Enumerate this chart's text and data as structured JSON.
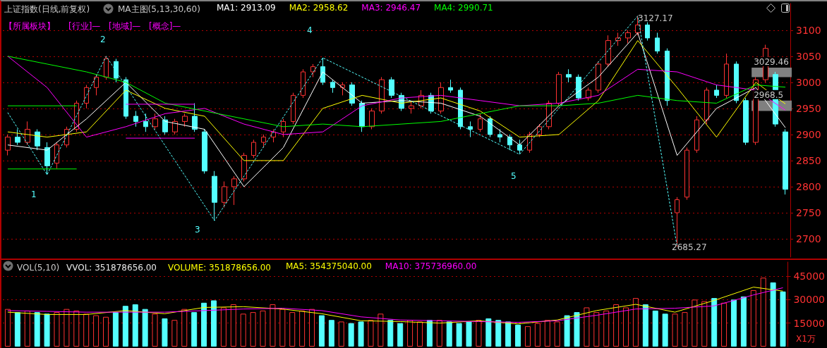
{
  "chart_data": [
    {
      "type": "candlestick",
      "tick_labels": "y",
      "grid": "y",
      "legend": "top",
      "annotations": [
        "上证指数(日线,前复权)",
        "MA主图(5,13,30,60)",
        "【所属板块】",
        "[行业]—",
        "[地域]—",
        "[概念]—",
        "1",
        "2",
        "3",
        "4",
        "5",
        "3127.17",
        "2685.27"
      ],
      "categories": [
        null,
        null,
        null,
        null,
        null,
        null,
        null,
        null,
        null,
        null,
        null,
        null,
        null,
        null,
        null,
        null,
        null,
        null,
        null,
        null,
        null,
        null,
        null,
        null,
        null,
        null,
        null,
        null,
        null,
        null,
        null,
        null,
        null,
        null,
        null,
        null,
        null,
        null,
        null,
        null,
        null,
        null,
        null,
        null,
        null,
        null,
        null,
        null,
        null,
        null,
        null,
        null,
        null,
        null,
        null,
        null,
        null,
        null,
        null,
        null,
        null,
        null,
        null,
        null,
        null,
        null,
        null,
        null,
        null,
        null,
        null,
        null,
        null,
        null,
        null,
        null,
        null,
        null,
        null,
        null
      ],
      "ohlc": [
        [
          2870,
          2900,
          2860,
          2895
        ],
        [
          2895,
          2910,
          2880,
          2885
        ],
        [
          2885,
          2925,
          2880,
          2910
        ],
        [
          2905,
          2910,
          2870,
          2878
        ],
        [
          2875,
          2885,
          2823,
          2840
        ],
        [
          2845,
          2885,
          2835,
          2880
        ],
        [
          2880,
          2915,
          2875,
          2910
        ],
        [
          2910,
          2965,
          2905,
          2960
        ],
        [
          2960,
          2995,
          2950,
          2990
        ],
        [
          2990,
          3015,
          2975,
          3010
        ],
        [
          3010,
          3050,
          3005,
          3045
        ],
        [
          3040,
          3045,
          3000,
          3008
        ],
        [
          3005,
          3010,
          2930,
          2935
        ],
        [
          2935,
          2945,
          2915,
          2925
        ],
        [
          2925,
          2940,
          2905,
          2915
        ],
        [
          2915,
          2940,
          2910,
          2930
        ],
        [
          2928,
          2935,
          2900,
          2905
        ],
        [
          2905,
          2930,
          2900,
          2925
        ],
        [
          2925,
          2940,
          2915,
          2935
        ],
        [
          2935,
          2960,
          2905,
          2910
        ],
        [
          2905,
          2910,
          2825,
          2830
        ],
        [
          2820,
          2830,
          2735,
          2770
        ],
        [
          2770,
          2810,
          2760,
          2800
        ],
        [
          2800,
          2820,
          2765,
          2815
        ],
        [
          2815,
          2865,
          2810,
          2860
        ],
        [
          2860,
          2890,
          2855,
          2885
        ],
        [
          2885,
          2900,
          2875,
          2895
        ],
        [
          2895,
          2910,
          2885,
          2905
        ],
        [
          2905,
          2930,
          2895,
          2925
        ],
        [
          2925,
          2980,
          2920,
          2975
        ],
        [
          2975,
          3025,
          2970,
          3020
        ],
        [
          3020,
          3035,
          3010,
          3030
        ],
        [
          3030,
          3047,
          2995,
          3000
        ],
        [
          3000,
          3005,
          2980,
          2990
        ],
        [
          2990,
          3000,
          2975,
          2995
        ],
        [
          2995,
          3000,
          2955,
          2960
        ],
        [
          2960,
          2965,
          2905,
          2915
        ],
        [
          2915,
          2950,
          2910,
          2945
        ],
        [
          2945,
          3010,
          2940,
          3005
        ],
        [
          3005,
          3010,
          2970,
          2975
        ],
        [
          2975,
          2980,
          2945,
          2950
        ],
        [
          2950,
          2965,
          2940,
          2955
        ],
        [
          2955,
          2985,
          2950,
          2975
        ],
        [
          2975,
          2980,
          2940,
          2945
        ],
        [
          2945,
          3000,
          2940,
          2990
        ],
        [
          2990,
          3005,
          2980,
          2985
        ],
        [
          2985,
          2990,
          2910,
          2915
        ],
        [
          2915,
          2925,
          2895,
          2910
        ],
        [
          2910,
          2940,
          2905,
          2930
        ],
        [
          2930,
          2935,
          2895,
          2900
        ],
        [
          2900,
          2910,
          2885,
          2895
        ],
        [
          2895,
          2900,
          2870,
          2880
        ],
        [
          2880,
          2890,
          2862,
          2870
        ],
        [
          2870,
          2905,
          2865,
          2900
        ],
        [
          2900,
          2920,
          2895,
          2915
        ],
        [
          2915,
          2965,
          2910,
          2960
        ],
        [
          2960,
          3020,
          2955,
          3015
        ],
        [
          3015,
          3025,
          3000,
          3010
        ],
        [
          3010,
          3015,
          2965,
          2970
        ],
        [
          2970,
          2990,
          2965,
          2985
        ],
        [
          2985,
          3040,
          2980,
          3035
        ],
        [
          3035,
          3090,
          3030,
          3080
        ],
        [
          3080,
          3095,
          3070,
          3085
        ],
        [
          3085,
          3100,
          3075,
          3095
        ],
        [
          3095,
          3127.17,
          3090,
          3110
        ],
        [
          3110,
          3115,
          3080,
          3085
        ],
        [
          3085,
          3095,
          3055,
          3060
        ],
        [
          3060,
          3065,
          2955,
          2965
        ],
        [
          2750,
          2780,
          2685.27,
          2775
        ],
        [
          2780,
          2875,
          2775,
          2870
        ],
        [
          2870,
          2935,
          2865,
          2928
        ],
        [
          2928,
          2990,
          2920,
          2985
        ],
        [
          2985,
          2995,
          2970,
          2975
        ],
        [
          2975,
          3055,
          2970,
          3035
        ],
        [
          3035,
          3040,
          2960,
          2965
        ],
        [
          2965,
          2970,
          2880,
          2885
        ],
        [
          2885,
          3010,
          2880,
          3005
        ],
        [
          3005,
          3072,
          3000,
          3065
        ],
        [
          3015,
          3020,
          2915,
          2920
        ],
        [
          2905,
          2910,
          2785,
          2795
        ]
      ],
      "colors": [
        "#ff3232",
        "#54ffff",
        "#ff3232",
        "#54ffff",
        "#54ffff",
        "#ff3232",
        "#ff3232",
        "#ff3232",
        "#ff3232",
        "#ff3232",
        "#ff3232",
        "#54ffff",
        "#54ffff",
        "#54ffff",
        "#54ffff",
        "#ff3232",
        "#54ffff",
        "#ff3232",
        "#ff3232",
        "#54ffff",
        "#54ffff",
        "#54ffff",
        "#ff3232",
        "#ff3232",
        "#ff3232",
        "#ff3232",
        "#ff3232",
        "#ff3232",
        "#ff3232",
        "#ff3232",
        "#ff3232",
        "#ff3232",
        "#54ffff",
        "#54ffff",
        "#ff3232",
        "#54ffff",
        "#54ffff",
        "#ff3232",
        "#ff3232",
        "#54ffff",
        "#54ffff",
        "#ff3232",
        "#ff3232",
        "#54ffff",
        "#ff3232",
        "#54ffff",
        "#54ffff",
        "#54ffff",
        "#ff3232",
        "#54ffff",
        "#54ffff",
        "#54ffff",
        "#54ffff",
        "#ff3232",
        "#ff3232",
        "#ff3232",
        "#ff3232",
        "#54ffff",
        "#54ffff",
        "#ff3232",
        "#ff3232",
        "#ff3232",
        "#ff3232",
        "#ff3232",
        "#ff3232",
        "#54ffff",
        "#54ffff",
        "#54ffff",
        "#ff3232",
        "#ff3232",
        "#ff3232",
        "#ff3232",
        "#54ffff",
        "#ff3232",
        "#54ffff",
        "#54ffff",
        "#ff3232",
        "#ff3232",
        "#54ffff",
        "#54ffff"
      ],
      "ylim": [
        2665,
        3151
      ],
      "yticks": [
        2700,
        2750,
        2800,
        2850,
        2900,
        2950,
        3000,
        3050,
        3100
      ],
      "bands": [
        {
          "axis": "y",
          "from": 3010,
          "to": 3028,
          "label": "3029.46",
          "color": "#808080"
        },
        {
          "axis": "y",
          "from": 2945,
          "to": 2965,
          "label": "2968.5",
          "color": "#808080"
        }
      ],
      "series": [
        {
          "type": "line",
          "name": "MA1: 2913.09",
          "color": "#ffffff",
          "values": [
            2880,
            null,
            null,
            null,
            2870,
            null,
            null,
            null,
            2930,
            null,
            null,
            null,
            3000,
            null,
            null,
            null,
            2925,
            null,
            null,
            null,
            2910,
            null,
            null,
            null,
            2800,
            null,
            null,
            null,
            2875,
            null,
            null,
            null,
            3020,
            null,
            null,
            null,
            2960,
            null,
            null,
            null,
            2965,
            null,
            null,
            null,
            2960,
            null,
            null,
            null,
            2935,
            null,
            null,
            null,
            2880,
            null,
            null,
            null,
            2955,
            null,
            null,
            null,
            3010,
            null,
            null,
            null,
            3095,
            null,
            null,
            null,
            2860,
            null,
            null,
            null,
            2950,
            null,
            null,
            null,
            2990,
            null,
            null,
            2913.09
          ]
        },
        {
          "type": "line",
          "name": "MA2: 2958.62",
          "color": "#ffff00",
          "values": [
            2905,
            null,
            null,
            null,
            2895,
            null,
            null,
            null,
            2905,
            null,
            null,
            null,
            2985,
            null,
            null,
            null,
            2950,
            null,
            null,
            null,
            2935,
            null,
            null,
            null,
            2850,
            null,
            null,
            null,
            2850,
            null,
            null,
            null,
            2950,
            null,
            null,
            null,
            2975,
            null,
            null,
            null,
            2960,
            null,
            null,
            null,
            2970,
            null,
            null,
            null,
            2945,
            null,
            null,
            null,
            2895,
            null,
            null,
            null,
            2900,
            null,
            null,
            null,
            2965,
            null,
            null,
            null,
            3080,
            null,
            null,
            null,
            2990,
            null,
            null,
            null,
            2895,
            null,
            null,
            null,
            3000,
            null,
            null,
            2958.62
          ]
        },
        {
          "type": "line",
          "name": "MA3: 2946.47",
          "color": "#ff00ff",
          "values": [
            3050,
            null,
            null,
            null,
            2990,
            null,
            null,
            null,
            2895,
            null,
            null,
            null,
            2915,
            null,
            null,
            null,
            2940,
            null,
            null,
            null,
            2950,
            null,
            null,
            null,
            2920,
            null,
            null,
            null,
            2900,
            null,
            null,
            null,
            2905,
            null,
            null,
            null,
            2955,
            null,
            null,
            null,
            2970,
            null,
            null,
            null,
            2975,
            null,
            null,
            null,
            2965,
            null,
            null,
            null,
            2955,
            null,
            null,
            null,
            2960,
            null,
            null,
            null,
            2975,
            null,
            null,
            null,
            3025,
            null,
            null,
            null,
            3020,
            null,
            null,
            null,
            2995,
            null,
            null,
            null,
            2985,
            null,
            null,
            2946.47
          ]
        },
        {
          "type": "line",
          "name": "MA4: 2990.71",
          "color": "#00ff00",
          "values": [
            3050,
            null,
            null,
            null,
            3035,
            null,
            null,
            null,
            3020,
            null,
            null,
            null,
            3000,
            null,
            null,
            null,
            2960,
            null,
            null,
            null,
            2945,
            null,
            null,
            null,
            2930,
            null,
            null,
            null,
            2915,
            null,
            null,
            null,
            2920,
            null,
            null,
            null,
            2915,
            null,
            null,
            null,
            2920,
            null,
            null,
            null,
            2925,
            null,
            null,
            null,
            2940,
            null,
            null,
            null,
            2955,
            null,
            null,
            null,
            2955,
            null,
            null,
            null,
            2960,
            null,
            null,
            null,
            2975,
            null,
            null,
            null,
            2965,
            null,
            null,
            null,
            2960,
            null,
            null,
            null,
            2995,
            null,
            null,
            2990.71
          ]
        },
        {
          "type": "line",
          "color": "#54ffff",
          "line_style": "dashed",
          "values": [
            2942,
            null,
            null,
            null,
            2823,
            null,
            null,
            null,
            null,
            null,
            3050,
            null,
            null,
            null,
            null,
            null,
            null,
            null,
            null,
            null,
            null,
            2735,
            null,
            null,
            null,
            null,
            null,
            null,
            null,
            null,
            null,
            null,
            3047,
            null,
            null,
            null,
            null,
            null,
            null,
            null,
            null,
            null,
            null,
            null,
            null,
            null,
            null,
            null,
            null,
            null,
            null,
            null,
            2862,
            null,
            null,
            null,
            null,
            null,
            null,
            null,
            null,
            null,
            null,
            null,
            3127.17,
            null,
            null,
            null,
            2685.27,
            null,
            null,
            null,
            null,
            null,
            null,
            null,
            null,
            null,
            null,
            null
          ]
        },
        {
          "type": "line",
          "color": "#00ff00",
          "values": [
            2955,
            null,
            null,
            null,
            null,
            null,
            null,
            2955,
            null,
            null,
            null,
            null,
            null,
            null,
            null,
            null,
            null,
            null,
            null,
            null,
            null,
            null,
            null,
            null,
            null,
            null,
            null,
            null,
            null,
            null,
            null,
            null,
            null,
            null,
            null,
            null,
            null,
            null,
            null,
            null,
            null,
            null,
            null,
            null,
            null,
            null,
            null,
            null,
            null,
            null,
            null,
            null,
            null,
            null,
            null,
            null,
            null,
            null,
            null,
            null,
            null,
            null,
            null,
            null,
            null,
            null,
            null,
            null,
            null,
            null,
            null,
            null,
            null,
            null,
            null,
            null,
            null,
            null,
            null,
            null
          ]
        },
        {
          "type": "line",
          "color": "#00ff00",
          "values": [
            2834,
            null,
            null,
            null,
            null,
            null,
            null,
            2834,
            null,
            null,
            null,
            null,
            null,
            null,
            null,
            null,
            null,
            null,
            null,
            null,
            null,
            null,
            null,
            null,
            null,
            null,
            null,
            null,
            null,
            null,
            null,
            null,
            null,
            null,
            null,
            null,
            null,
            null,
            null,
            null,
            null,
            null,
            null,
            null,
            null,
            null,
            null,
            null,
            null,
            null,
            null,
            null,
            null,
            null,
            null,
            null,
            null,
            null,
            null,
            null,
            null,
            null,
            null,
            null,
            null,
            null,
            null,
            null,
            null,
            null,
            null,
            null,
            null,
            null,
            null,
            null,
            null,
            null,
            null,
            null
          ]
        },
        {
          "type": "line",
          "color": "#ff00ff",
          "values": [
            null,
            null,
            null,
            null,
            null,
            null,
            null,
            null,
            null,
            null,
            null,
            null,
            2958,
            null,
            null,
            null,
            null,
            null,
            null,
            2958,
            null,
            null,
            null,
            null,
            null,
            null,
            null,
            null,
            null,
            null,
            null,
            null,
            null,
            null,
            null,
            null,
            null,
            null,
            null,
            null,
            null,
            null,
            null,
            null,
            null,
            null,
            null,
            null,
            null,
            null,
            null,
            null,
            null,
            null,
            null,
            null,
            null,
            null,
            null,
            null,
            null,
            null,
            null,
            null,
            null,
            null,
            null,
            null,
            null,
            null,
            null,
            null,
            null,
            null,
            null,
            null,
            null,
            null,
            null,
            null
          ]
        },
        {
          "type": "line",
          "color": "#ff00ff",
          "values": [
            null,
            null,
            null,
            null,
            null,
            null,
            null,
            null,
            null,
            null,
            null,
            null,
            2893,
            null,
            null,
            null,
            null,
            null,
            null,
            2893,
            null,
            null,
            null,
            null,
            null,
            null,
            null,
            null,
            null,
            null,
            null,
            null,
            null,
            null,
            null,
            null,
            null,
            null,
            null,
            null,
            null,
            null,
            null,
            null,
            null,
            null,
            null,
            null,
            null,
            null,
            null,
            null,
            null,
            null,
            null,
            null,
            null,
            null,
            null,
            null,
            null,
            null,
            null,
            null,
            null,
            null,
            null,
            null,
            null,
            null,
            null,
            null,
            null,
            null,
            null,
            null,
            null,
            null,
            null,
            null
          ]
        }
      ]
    },
    {
      "type": "bar",
      "tick_labels": "y",
      "grid": "y",
      "legend": "top",
      "annotations": [
        "VOL(5,10)",
        "VVOL: 351878656.00",
        "VOLUME: 351878656.00",
        "X1万"
      ],
      "categories": [
        null,
        null,
        null,
        null,
        null,
        null,
        null,
        null,
        null,
        null,
        null,
        null,
        null,
        null,
        null,
        null,
        null,
        null,
        null,
        null,
        null,
        null,
        null,
        null,
        null,
        null,
        null,
        null,
        null,
        null,
        null,
        null,
        null,
        null,
        null,
        null,
        null,
        null,
        null,
        null,
        null,
        null,
        null,
        null,
        null,
        null,
        null,
        null,
        null,
        null,
        null,
        null,
        null,
        null,
        null,
        null,
        null,
        null,
        null,
        null,
        null,
        null,
        null,
        null,
        null,
        null,
        null,
        null,
        null,
        null,
        null,
        null,
        null,
        null,
        null,
        null,
        null,
        null,
        null,
        null
      ],
      "values": [
        24000,
        22000,
        23000,
        22000,
        21000,
        22000,
        24000,
        23000,
        21000,
        20000,
        19000,
        22000,
        26000,
        27000,
        24000,
        21000,
        18000,
        17000,
        24000,
        22000,
        28000,
        29500,
        25000,
        27000,
        21000,
        22000,
        23000,
        27000,
        24000,
        22000,
        23000,
        24000,
        20000,
        17000,
        16000,
        15000,
        16000,
        17000,
        21000,
        17000,
        15000,
        17000,
        16000,
        17000,
        17000,
        16000,
        15000,
        16000,
        17000,
        18000,
        17000,
        16000,
        14000,
        13000,
        15000,
        17000,
        16000,
        20000,
        22000,
        25000,
        22000,
        23000,
        27000,
        25000,
        31000,
        27000,
        23000,
        21000,
        21000,
        22000,
        30000,
        29000,
        31000,
        28000,
        30000,
        32000,
        36000,
        44000,
        41000,
        35187.8656
      ],
      "colors": [
        "#ff3232",
        "#54ffff",
        "#ff3232",
        "#54ffff",
        "#54ffff",
        "#ff3232",
        "#ff3232",
        "#ff3232",
        "#ff3232",
        "#ff3232",
        "#ff3232",
        "#54ffff",
        "#54ffff",
        "#54ffff",
        "#54ffff",
        "#ff3232",
        "#54ffff",
        "#ff3232",
        "#ff3232",
        "#54ffff",
        "#54ffff",
        "#54ffff",
        "#ff3232",
        "#ff3232",
        "#ff3232",
        "#ff3232",
        "#ff3232",
        "#ff3232",
        "#ff3232",
        "#ff3232",
        "#ff3232",
        "#ff3232",
        "#54ffff",
        "#54ffff",
        "#ff3232",
        "#54ffff",
        "#54ffff",
        "#ff3232",
        "#ff3232",
        "#54ffff",
        "#54ffff",
        "#ff3232",
        "#ff3232",
        "#54ffff",
        "#ff3232",
        "#54ffff",
        "#54ffff",
        "#54ffff",
        "#ff3232",
        "#54ffff",
        "#54ffff",
        "#54ffff",
        "#54ffff",
        "#ff3232",
        "#ff3232",
        "#ff3232",
        "#ff3232",
        "#54ffff",
        "#54ffff",
        "#ff3232",
        "#ff3232",
        "#ff3232",
        "#ff3232",
        "#ff3232",
        "#ff3232",
        "#54ffff",
        "#54ffff",
        "#54ffff",
        "#ff3232",
        "#ff3232",
        "#ff3232",
        "#ff3232",
        "#54ffff",
        "#ff3232",
        "#54ffff",
        "#54ffff",
        "#ff3232",
        "#ff3232",
        "#54ffff",
        "#54ffff"
      ],
      "ylim": [
        0,
        54000
      ],
      "yticks": [
        15000,
        30000,
        45000
      ],
      "series": [
        {
          "type": "line",
          "name": "MA5: 354375040.00",
          "color": "#ffff00",
          "values": [
            22000,
            null,
            null,
            null,
            20500,
            null,
            null,
            null,
            20500,
            null,
            null,
            null,
            23000,
            null,
            null,
            null,
            21000,
            null,
            null,
            null,
            25000,
            null,
            null,
            null,
            25500,
            null,
            null,
            null,
            24000,
            null,
            null,
            null,
            21000,
            null,
            null,
            null,
            16500,
            null,
            null,
            null,
            16000,
            null,
            null,
            null,
            15000,
            null,
            null,
            null,
            16500,
            null,
            null,
            null,
            14500,
            null,
            null,
            null,
            17000,
            null,
            null,
            null,
            23000,
            null,
            null,
            null,
            27000,
            null,
            null,
            null,
            22000,
            null,
            null,
            null,
            29500,
            null,
            null,
            null,
            38000,
            null,
            null,
            35437.504
          ]
        },
        {
          "type": "line",
          "name": "MA10: 375736960.00",
          "color": "#ff00ff",
          "values": [
            23000,
            null,
            null,
            null,
            22500,
            null,
            null,
            null,
            22000,
            null,
            null,
            null,
            22000,
            null,
            null,
            null,
            22000,
            null,
            null,
            null,
            23000,
            null,
            null,
            null,
            24000,
            null,
            null,
            null,
            24500,
            null,
            null,
            null,
            23000,
            null,
            null,
            null,
            19000,
            null,
            null,
            null,
            17000,
            null,
            null,
            null,
            16500,
            null,
            null,
            null,
            16000,
            null,
            null,
            null,
            15500,
            null,
            null,
            null,
            16500,
            null,
            null,
            null,
            20000,
            null,
            null,
            null,
            24000,
            null,
            null,
            null,
            24500,
            null,
            null,
            null,
            26000,
            null,
            null,
            null,
            33000,
            null,
            null,
            37573.696
          ]
        }
      ]
    }
  ]
}
